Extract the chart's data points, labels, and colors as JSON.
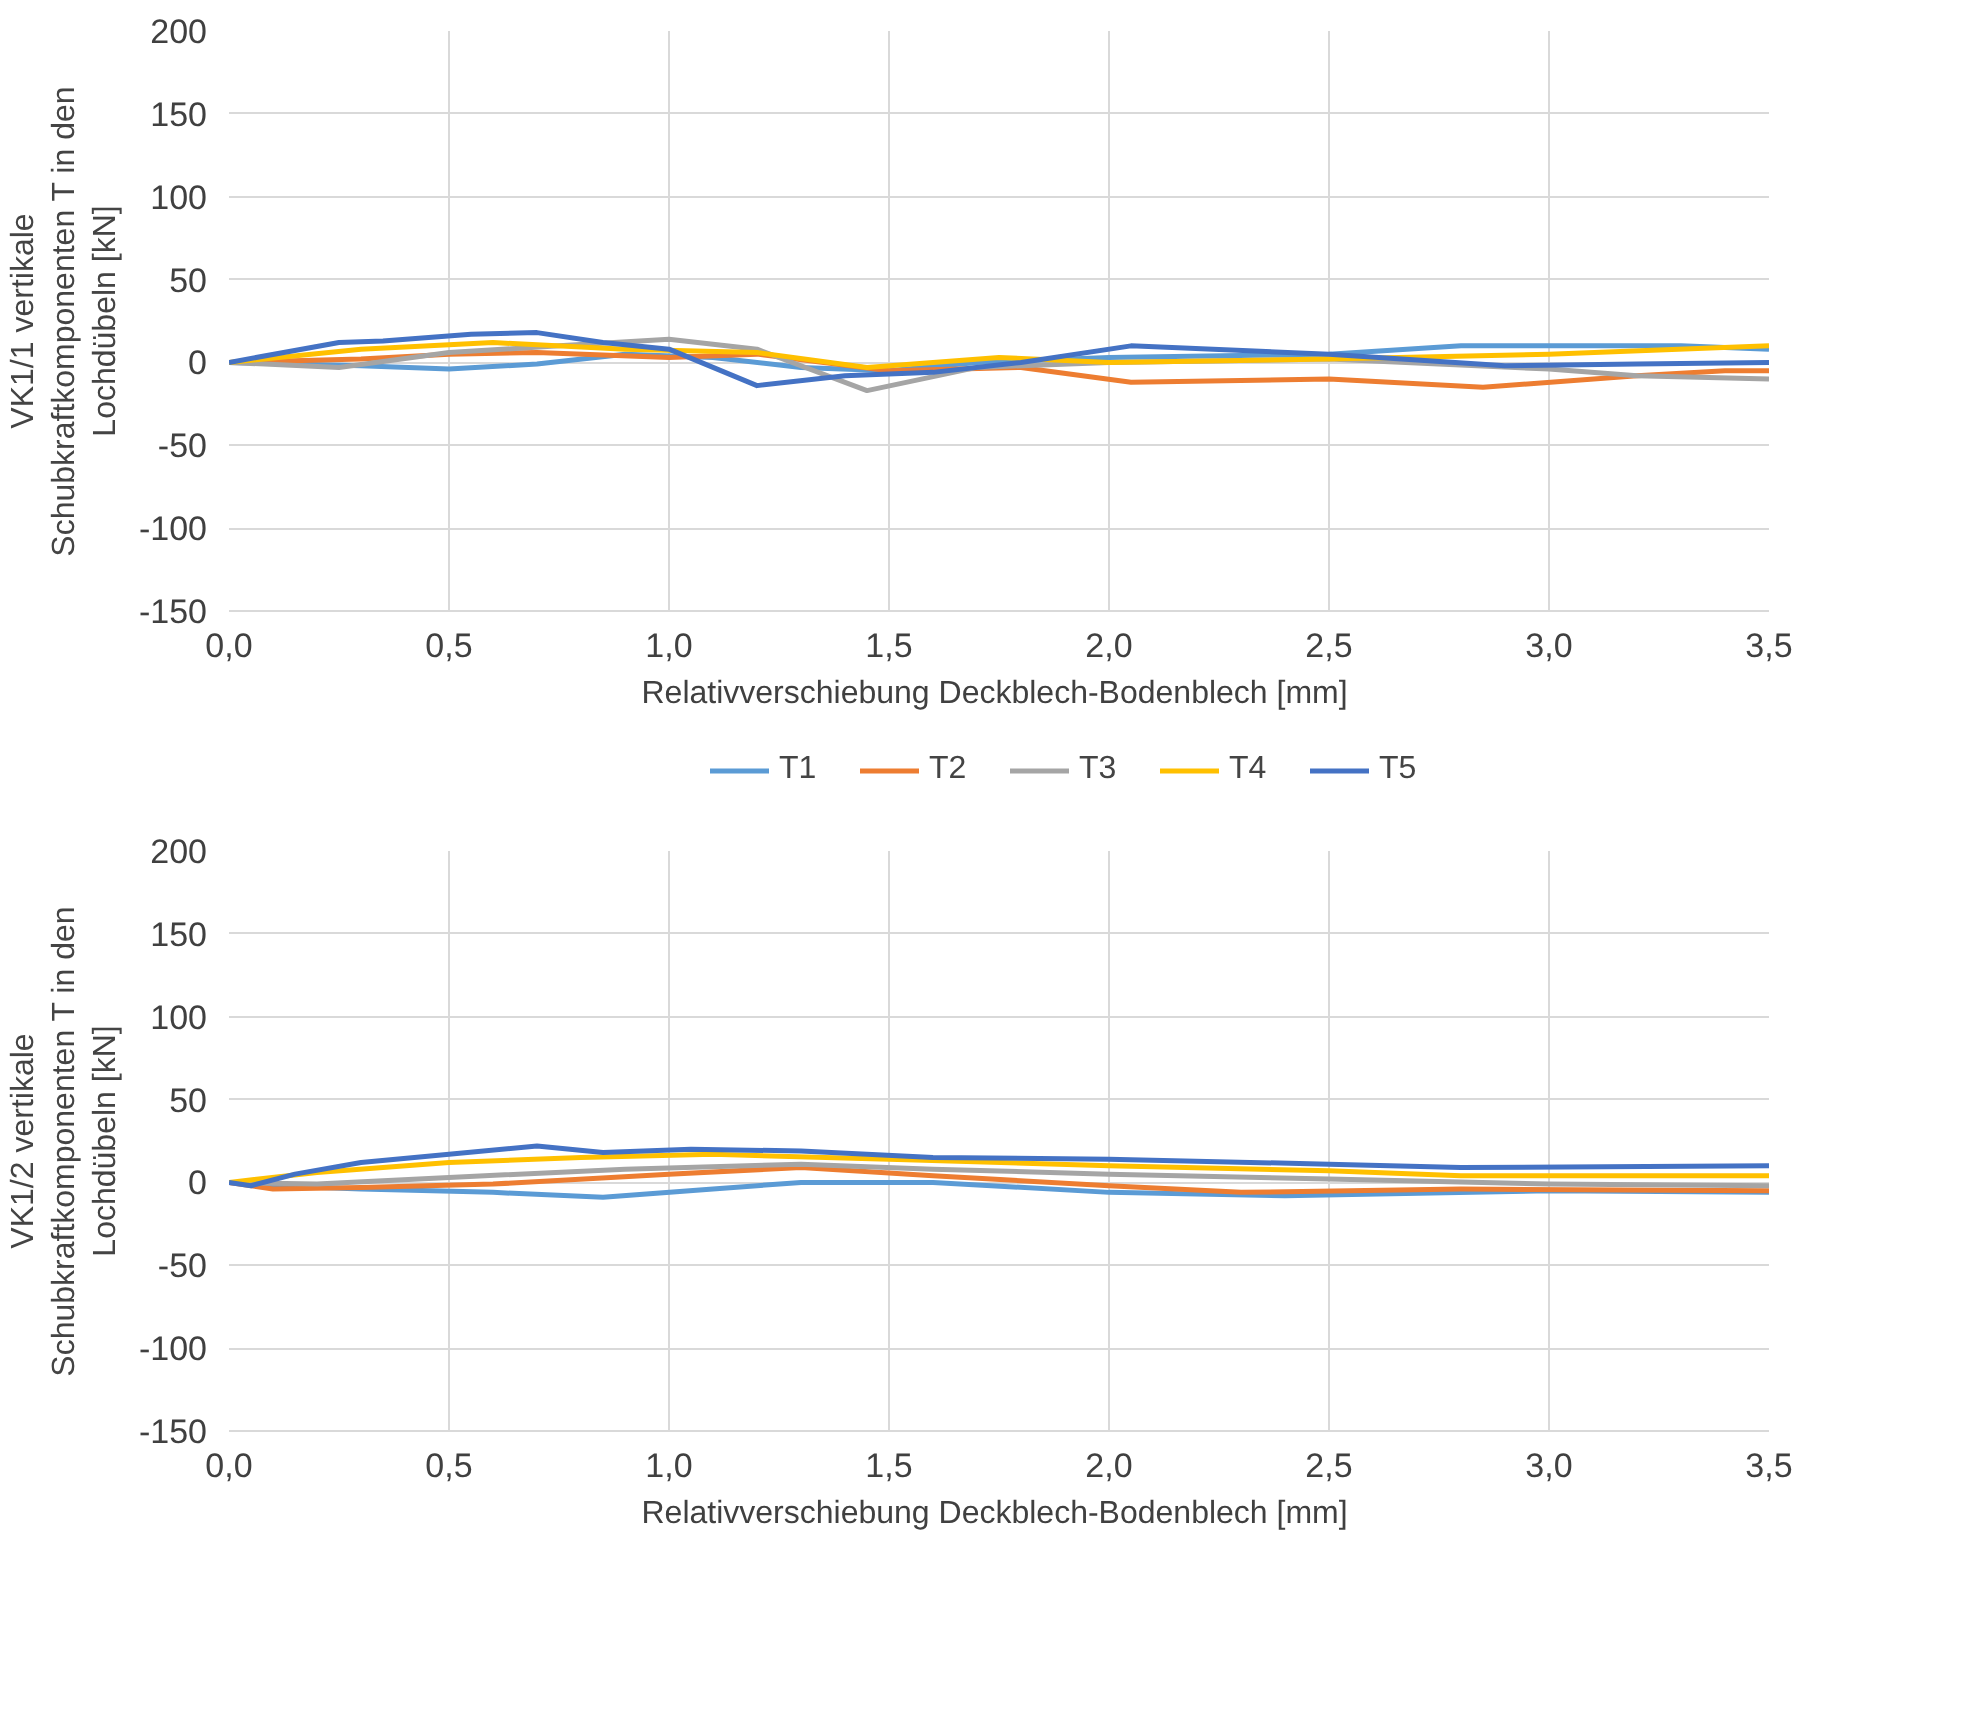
{
  "chart_data": [
    {
      "type": "line",
      "ylabel": "VK1/1 vertikale Schubkraftkomponenten T in den Lochdübeln [kN]",
      "xlabel": "Relativverschiebung  Deckblech-Bodenblech [mm]",
      "xlim": [
        0,
        3.5
      ],
      "ylim": [
        -150,
        200
      ],
      "xticks": [
        {
          "value": 0,
          "label": "0,0"
        },
        {
          "value": 0.5,
          "label": "0,5"
        },
        {
          "value": 1,
          "label": "1,0"
        },
        {
          "value": 1.5,
          "label": "1,5"
        },
        {
          "value": 2,
          "label": "2,0"
        },
        {
          "value": 2.5,
          "label": "2,5"
        },
        {
          "value": 3,
          "label": "3,0"
        },
        {
          "value": 3.5,
          "label": "3,5"
        }
      ],
      "yticks": [
        -150,
        -100,
        -50,
        0,
        50,
        100,
        150,
        200
      ],
      "grid": true,
      "legend": "bottom",
      "series": [
        {
          "name": "T1",
          "color": "#5b9bd5",
          "x": [
            0,
            0.3,
            0.5,
            0.7,
            0.9,
            1.1,
            1.3,
            1.5,
            1.7,
            2.0,
            2.5,
            2.8,
            3.0,
            3.3,
            3.5
          ],
          "values": [
            0,
            -2,
            -4,
            -1,
            5,
            3,
            -3,
            -5,
            0,
            3,
            5,
            10,
            10,
            10,
            8
          ]
        },
        {
          "name": "T2",
          "color": "#ed7d31",
          "x": [
            0,
            0.3,
            0.5,
            0.7,
            1.0,
            1.2,
            1.5,
            1.8,
            2.05,
            2.5,
            2.85,
            3.2,
            3.4,
            3.5
          ],
          "values": [
            0,
            2,
            5,
            6,
            3,
            5,
            -5,
            -3,
            -12,
            -10,
            -15,
            -8,
            -5,
            -5
          ]
        },
        {
          "name": "T3",
          "color": "#a5a5a5",
          "x": [
            0,
            0.25,
            0.5,
            0.75,
            1.0,
            1.2,
            1.45,
            1.7,
            2.0,
            2.5,
            3.0,
            3.2,
            3.5
          ],
          "values": [
            0,
            -3,
            6,
            10,
            14,
            8,
            -17,
            -3,
            0,
            2,
            -4,
            -8,
            -10
          ]
        },
        {
          "name": "T4",
          "color": "#ffc000",
          "x": [
            0,
            0.3,
            0.6,
            0.9,
            1.2,
            1.45,
            1.75,
            2.0,
            2.5,
            3.0,
            3.5
          ],
          "values": [
            0,
            8,
            12,
            8,
            6,
            -3,
            3,
            0,
            2,
            5,
            10
          ]
        },
        {
          "name": "T5",
          "color": "#4472c4",
          "x": [
            0,
            0.25,
            0.35,
            0.55,
            0.7,
            0.85,
            1.0,
            1.2,
            1.4,
            1.6,
            1.8,
            2.05,
            2.5,
            2.9,
            3.2,
            3.5
          ],
          "values": [
            0,
            12,
            13,
            17,
            18,
            12,
            8,
            -14,
            -8,
            -6,
            0,
            10,
            5,
            -2,
            -1,
            0
          ]
        }
      ]
    },
    {
      "type": "line",
      "ylabel": "VK1/2 vertikale Schubkraftkomponenten T in den Lochdübeln [kN]",
      "xlabel": "Relativverschiebung  Deckblech-Bodenblech [mm]",
      "xlim": [
        0,
        3.5
      ],
      "ylim": [
        -150,
        200
      ],
      "xticks": [
        {
          "value": 0,
          "label": "0,0"
        },
        {
          "value": 0.5,
          "label": "0,5"
        },
        {
          "value": 1,
          "label": "1,0"
        },
        {
          "value": 1.5,
          "label": "1,5"
        },
        {
          "value": 2,
          "label": "2,0"
        },
        {
          "value": 2.5,
          "label": "2,5"
        },
        {
          "value": 3,
          "label": "3,0"
        },
        {
          "value": 3.5,
          "label": "3,5"
        }
      ],
      "yticks": [
        -150,
        -100,
        -50,
        0,
        50,
        100,
        150,
        200
      ],
      "grid": true,
      "series": [
        {
          "color": "#5b9bd5",
          "x": [
            0,
            0.1,
            0.3,
            0.6,
            0.85,
            1.1,
            1.3,
            1.6,
            2.0,
            2.4,
            3.0,
            3.5
          ],
          "values": [
            0,
            -2,
            -4,
            -6,
            -9,
            -4,
            0,
            0,
            -6,
            -8,
            -5,
            -6
          ]
        },
        {
          "color": "#ed7d31",
          "x": [
            0,
            0.1,
            0.3,
            0.6,
            1.0,
            1.3,
            1.6,
            2.0,
            2.3,
            2.8,
            3.5
          ],
          "values": [
            0,
            -4,
            -3,
            -1,
            5,
            9,
            4,
            -2,
            -6,
            -4,
            -5
          ]
        },
        {
          "color": "#a5a5a5",
          "x": [
            0,
            0.2,
            0.5,
            0.9,
            1.3,
            1.6,
            2.0,
            2.5,
            3.0,
            3.5
          ],
          "values": [
            0,
            -1,
            3,
            8,
            11,
            8,
            5,
            2,
            -1,
            -2
          ]
        },
        {
          "color": "#ffc000",
          "x": [
            0,
            0.2,
            0.5,
            0.8,
            1.1,
            1.5,
            2.0,
            2.5,
            2.8,
            3.5
          ],
          "values": [
            0,
            6,
            12,
            15,
            17,
            14,
            10,
            7,
            4,
            4
          ]
        },
        {
          "color": "#4472c4",
          "x": [
            0,
            0.05,
            0.15,
            0.3,
            0.5,
            0.7,
            0.85,
            1.05,
            1.3,
            1.6,
            2.0,
            2.5,
            2.8,
            3.5
          ],
          "values": [
            0,
            -2,
            5,
            12,
            17,
            22,
            18,
            20,
            19,
            15,
            14,
            11,
            9,
            10
          ]
        }
      ]
    }
  ]
}
